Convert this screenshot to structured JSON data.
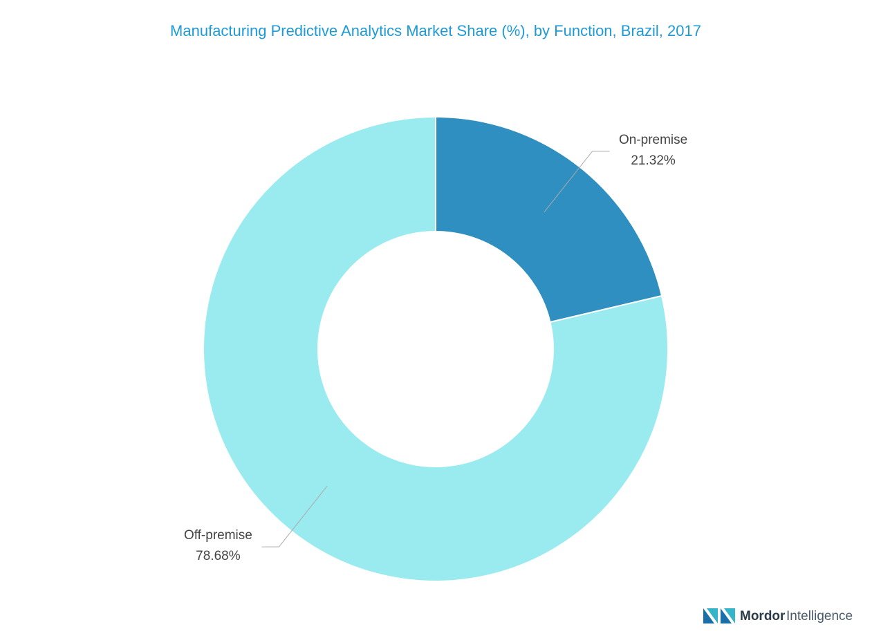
{
  "chart_data": {
    "type": "donut",
    "title": "Manufacturing Predictive Analytics Market Share (%), by Function, Brazil, 2017",
    "categories": [
      "On-premise",
      "Off-premise"
    ],
    "values": [
      21.32,
      78.68
    ],
    "value_labels": [
      "21.32%",
      "78.68%"
    ],
    "colors": [
      "#2e8fc0",
      "#9aebf0"
    ]
  },
  "footer": {
    "logo_bold": "Mordor",
    "logo_light": "Intelligence"
  }
}
